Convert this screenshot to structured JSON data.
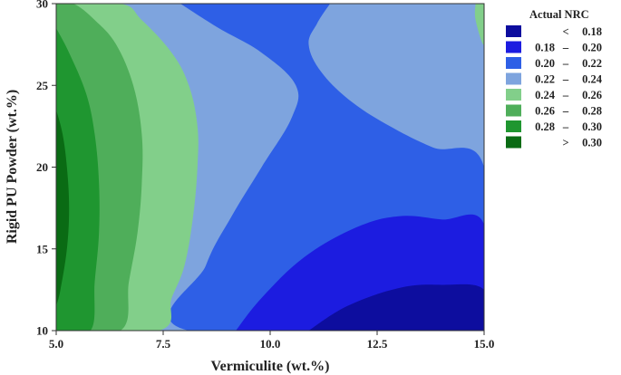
{
  "chart_data": {
    "type": "contour",
    "xlabel": "Vermiculite (wt.%)",
    "ylabel": "Rigid PU Powder (wt.%)",
    "xlim": [
      5.0,
      15.0
    ],
    "ylim": [
      10,
      30
    ],
    "x_ticks": [
      "5.0",
      "7.5",
      "10.0",
      "12.5",
      "15.0"
    ],
    "y_ticks": [
      "10",
      "15",
      "20",
      "25",
      "30"
    ],
    "legend": {
      "title": "Actual NRC",
      "placement": "right",
      "items": [
        {
          "lo": "<",
          "hi": "0.18",
          "color": "#0D0D9E"
        },
        {
          "lo": "0.18",
          "hi": "0.20",
          "color": "#1C1CE0"
        },
        {
          "lo": "0.20",
          "hi": "0.22",
          "color": "#2E5FE6"
        },
        {
          "lo": "0.22",
          "hi": "0.24",
          "color": "#7EA4DE"
        },
        {
          "lo": "0.24",
          "hi": "0.26",
          "color": "#82CF8A"
        },
        {
          "lo": "0.26",
          "hi": "0.28",
          "color": "#4FAE5A"
        },
        {
          "lo": "0.28",
          "hi": "0.30",
          "color": "#1F9630"
        },
        {
          "lo": ">",
          "hi": "0.30",
          "color": "#0A6B14"
        }
      ],
      "dash": "–"
    },
    "regions": [
      {
        "level": "0.22 – 0.24",
        "color": "#7EA4DE",
        "points": [
          [
            5.0,
            10
          ],
          [
            15.0,
            10
          ],
          [
            15.0,
            30
          ],
          [
            5.0,
            30
          ]
        ]
      },
      {
        "level": "0.20 – 0.22",
        "color": "#2E5FE6",
        "points": [
          [
            7.9,
            30
          ],
          [
            8.8,
            28.5
          ],
          [
            9.8,
            27.0
          ],
          [
            10.6,
            25.0
          ],
          [
            10.5,
            23.0
          ],
          [
            9.8,
            20.0
          ],
          [
            9.1,
            17.0
          ],
          [
            8.5,
            14.0
          ],
          [
            8.1,
            10
          ],
          [
            15.0,
            10
          ],
          [
            15.0,
            20.0
          ],
          [
            13.8,
            21.2
          ],
          [
            12.8,
            22.5
          ],
          [
            11.9,
            24.0
          ],
          [
            11.2,
            25.8
          ],
          [
            10.9,
            27.5
          ],
          [
            11.1,
            28.8
          ],
          [
            11.4,
            30
          ]
        ]
      },
      {
        "level": "0.18 – 0.20",
        "color": "#1C1CE0",
        "points": [
          [
            9.2,
            10
          ],
          [
            9.8,
            12.0
          ],
          [
            10.8,
            14.5
          ],
          [
            12.0,
            16.3
          ],
          [
            13.0,
            17.0
          ],
          [
            14.0,
            16.8
          ],
          [
            15.0,
            16.5
          ],
          [
            15.0,
            10
          ]
        ]
      },
      {
        "level": "< 0.18",
        "color": "#0D0D9E",
        "points": [
          [
            10.9,
            10
          ],
          [
            11.8,
            11.5
          ],
          [
            13.0,
            12.6
          ],
          [
            14.0,
            12.8
          ],
          [
            15.0,
            12.5
          ],
          [
            15.0,
            10
          ]
        ]
      },
      {
        "level": "0.24 – 0.26",
        "color": "#82CF8A",
        "points": [
          [
            5.0,
            10
          ],
          [
            7.4,
            10
          ],
          [
            7.7,
            12.0
          ],
          [
            8.0,
            14.0
          ],
          [
            8.2,
            17.0
          ],
          [
            8.3,
            20.0
          ],
          [
            8.3,
            22.5
          ],
          [
            8.1,
            25.0
          ],
          [
            7.7,
            27.0
          ],
          [
            7.0,
            29.0
          ],
          [
            6.5,
            30
          ],
          [
            5.0,
            30
          ]
        ]
      },
      {
        "level": "0.24 – 0.26",
        "color": "#82CF8A",
        "points": [
          [
            14.8,
            30
          ],
          [
            14.8,
            29.0
          ],
          [
            15.0,
            27.5
          ],
          [
            15.0,
            30
          ]
        ]
      },
      {
        "level": "0.26 – 0.28",
        "color": "#4FAE5A",
        "points": [
          [
            5.0,
            10
          ],
          [
            6.5,
            10
          ],
          [
            6.7,
            13.0
          ],
          [
            6.9,
            16.0
          ],
          [
            7.0,
            19.0
          ],
          [
            7.0,
            22.0
          ],
          [
            6.8,
            25.0
          ],
          [
            6.4,
            27.5
          ],
          [
            5.9,
            29.0
          ],
          [
            5.4,
            30
          ],
          [
            5.0,
            30
          ]
        ]
      },
      {
        "level": "0.28 – 0.30",
        "color": "#1F9630",
        "points": [
          [
            5.0,
            10
          ],
          [
            5.8,
            10
          ],
          [
            5.9,
            13.0
          ],
          [
            6.0,
            16.0
          ],
          [
            6.0,
            19.0
          ],
          [
            5.9,
            22.0
          ],
          [
            5.7,
            24.5
          ],
          [
            5.3,
            27.0
          ],
          [
            5.0,
            28.5
          ]
        ]
      },
      {
        "level": "> 0.30",
        "color": "#0A6B14",
        "points": [
          [
            5.0,
            11.5
          ],
          [
            5.1,
            12.5
          ],
          [
            5.25,
            15.0
          ],
          [
            5.3,
            17.5
          ],
          [
            5.25,
            20.0
          ],
          [
            5.15,
            22.0
          ],
          [
            5.0,
            23.5
          ]
        ]
      }
    ]
  }
}
